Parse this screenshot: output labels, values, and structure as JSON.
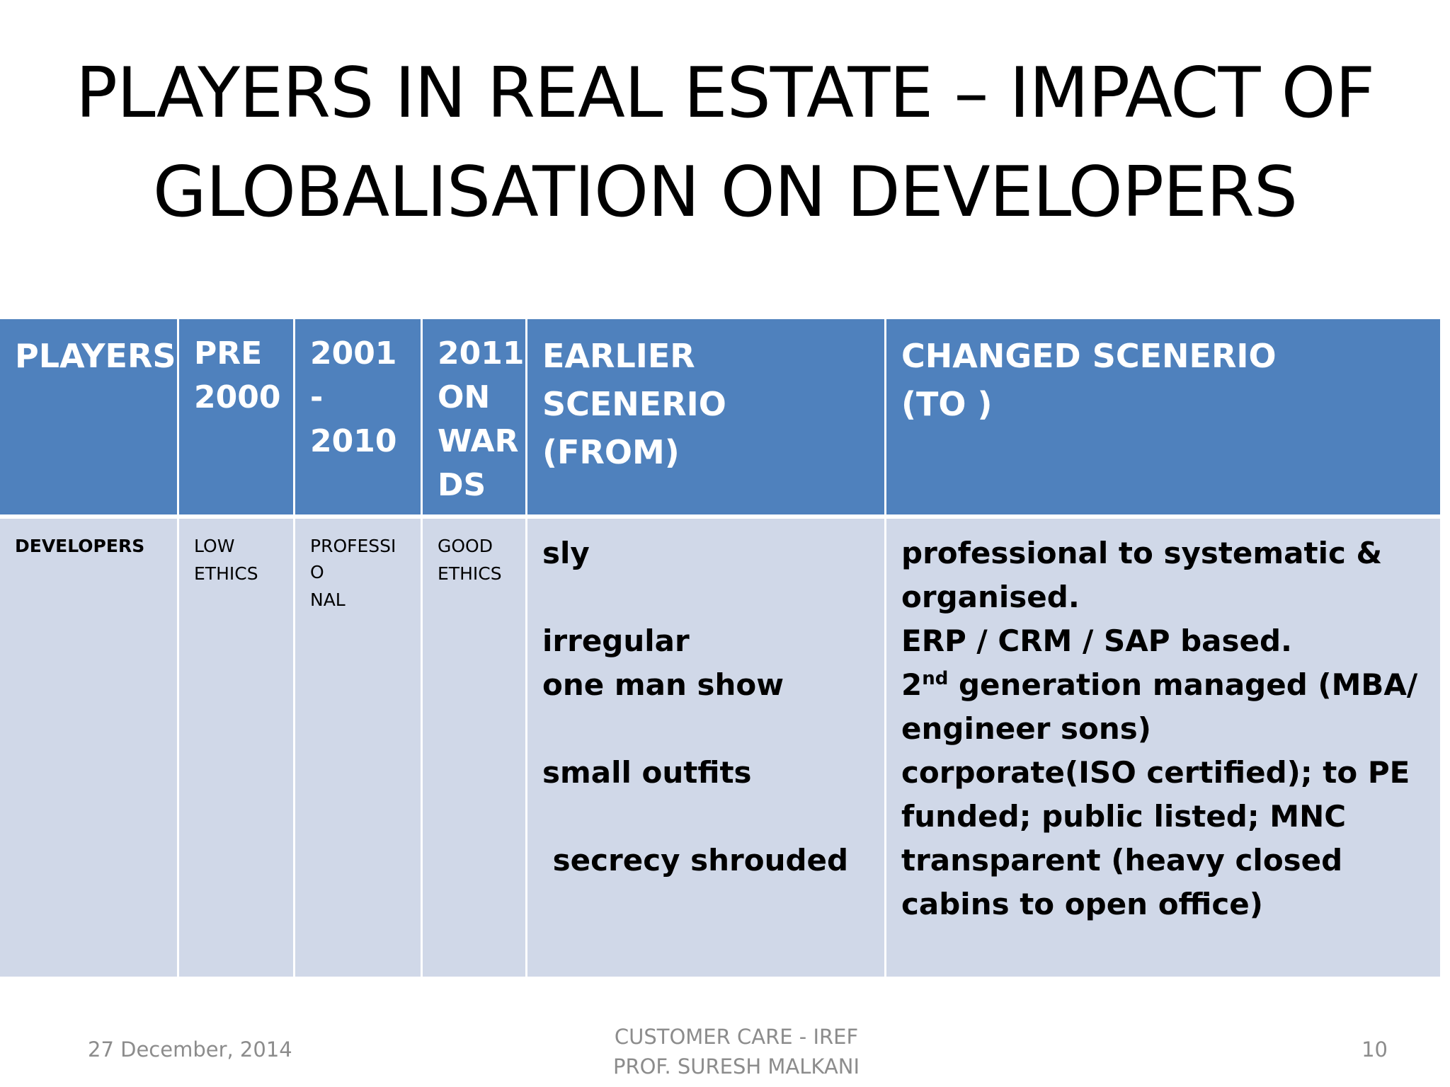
{
  "title": {
    "line1": "PLAYERS IN REAL ESTATE – IMPACT OF",
    "line2": "GLOBALISATION ON DEVELOPERS"
  },
  "table": {
    "headers": {
      "players": "PLAYERS",
      "pre2000": {
        "line1": "PRE",
        "line2": "2000"
      },
      "y2001": {
        "line1": "2001 -",
        "line2": "2010"
      },
      "y2011": {
        "line1": "2011",
        "line2": "ON",
        "line3": "WAR",
        "line4": "DS"
      },
      "earlier": {
        "line1": "EARLIER SCENERIO",
        "line2": "(FROM)"
      },
      "changed": {
        "line1": "CHANGED SCENERIO",
        "line2": "(TO )"
      }
    },
    "row": {
      "player": "DEVELOPERS",
      "pre2000": {
        "line1": "LOW",
        "line2": "ETHICS"
      },
      "y2001": {
        "line1": "PROFESSIO",
        "line2": "NAL"
      },
      "y2011": {
        "line1": "GOOD",
        "line2": "ETHICS"
      },
      "earlier": {
        "item1": "sly",
        "item2": "irregular",
        "item3": "one man show",
        "item4": "small outfits",
        "item5": " secrecy shrouded"
      },
      "changed": {
        "item1": "professional to systematic & organised.",
        "item2": "ERP / CRM / SAP based.",
        "item3_prefix": "2",
        "item3_sup": "nd",
        "item3_rest": " generation managed (MBA/ engineer sons)",
        "item4": "corporate(ISO certified); to PE funded; public listed; MNC",
        "item5": "transparent (heavy closed cabins to open office)"
      }
    }
  },
  "footer": {
    "date": "27 December, 2014",
    "center_line1": "CUSTOMER CARE - IREF",
    "center_line2": "PROF. SURESH MALKANI",
    "page": "10"
  }
}
